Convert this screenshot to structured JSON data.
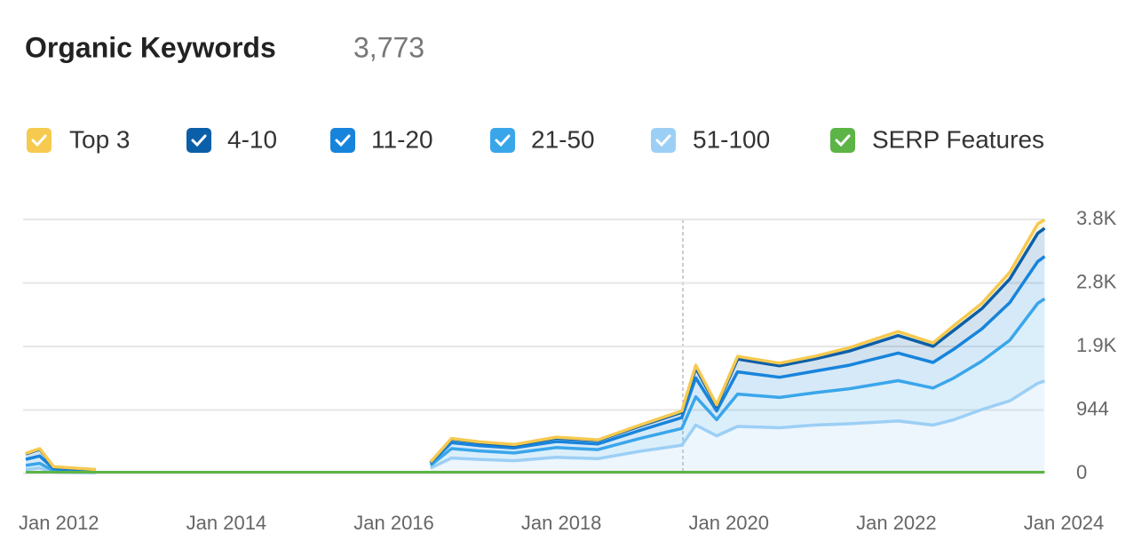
{
  "chart_data": {
    "type": "stacked-area",
    "title": "Organic Keywords",
    "subtitle": "3,773",
    "x": [
      "2011-08",
      "2011-10",
      "2011-12",
      "2012-06",
      "2014-01",
      "2016-06",
      "2016-09",
      "2017-01",
      "2017-06",
      "2017-12",
      "2018-06",
      "2018-12",
      "2019-06",
      "2019-08",
      "2019-11",
      "2020-02",
      "2020-08",
      "2021-01",
      "2021-06",
      "2022-01",
      "2022-06",
      "2022-09",
      "2023-01",
      "2023-05",
      "2023-09",
      "2023-10"
    ],
    "xlim": [
      "2011-08",
      "2024-01"
    ],
    "xticks": [
      {
        "value": "2012-01",
        "label": "Jan 2012"
      },
      {
        "value": "2014-01",
        "label": "Jan 2014"
      },
      {
        "value": "2016-01",
        "label": "Jan 2016"
      },
      {
        "value": "2018-01",
        "label": "Jan 2018"
      },
      {
        "value": "2020-01",
        "label": "Jan 2020"
      },
      {
        "value": "2022-01",
        "label": "Jan 2022"
      },
      {
        "value": "2024-01",
        "label": "Jan 2024"
      }
    ],
    "ylim": [
      0,
      3776
    ],
    "yticks": [
      0,
      944,
      {
        "value": 1888,
        "label": "1.9K"
      },
      {
        "value": 2832,
        "label": "2.8K"
      },
      {
        "value": 3776,
        "label": "3.8K"
      }
    ],
    "grid": true,
    "series": [
      {
        "name": "Top 3",
        "color": "#f6c94f",
        "values": [
          10,
          10,
          5,
          5,
          null,
          5,
          10,
          10,
          10,
          15,
          10,
          15,
          20,
          40,
          20,
          40,
          40,
          40,
          50,
          60,
          50,
          70,
          80,
          100,
          140,
          128
        ]
      },
      {
        "name": "4-10",
        "color": "#0b5fa8",
        "values": [
          80,
          100,
          25,
          15,
          null,
          15,
          50,
          45,
          40,
          50,
          50,
          65,
          80,
          150,
          70,
          190,
          170,
          180,
          210,
          260,
          240,
          280,
          300,
          350,
          420,
          420
        ]
      },
      {
        "name": "11-20",
        "color": "#1784dc",
        "values": [
          90,
          110,
          30,
          20,
          null,
          30,
          90,
          80,
          75,
          90,
          85,
          120,
          160,
          280,
          130,
          330,
          300,
          320,
          350,
          410,
          380,
          430,
          480,
          560,
          620,
          629
        ]
      },
      {
        "name": "21-50",
        "color": "#3aa6ea",
        "values": [
          60,
          70,
          20,
          10,
          null,
          40,
          140,
          125,
          115,
          145,
          135,
          190,
          250,
          420,
          240,
          480,
          450,
          480,
          520,
          600,
          550,
          620,
          720,
          900,
          1190,
          1220
        ]
      },
      {
        "name": "51-100",
        "color": "#9ccff5",
        "values": [
          60,
          80,
          20,
          10,
          null,
          80,
          230,
          210,
          190,
          240,
          220,
          330,
          420,
          720,
          560,
          700,
          680,
          720,
          740,
          780,
          720,
          800,
          950,
          1080,
          1340,
          1376
        ]
      },
      {
        "name": "SERP Features",
        "color": "#5db446",
        "values": [
          20,
          20,
          20,
          20,
          20,
          20,
          20,
          20,
          20,
          20,
          20,
          20,
          20,
          20,
          20,
          20,
          20,
          20,
          20,
          20,
          20,
          20,
          20,
          20,
          20,
          20
        ]
      }
    ]
  }
}
